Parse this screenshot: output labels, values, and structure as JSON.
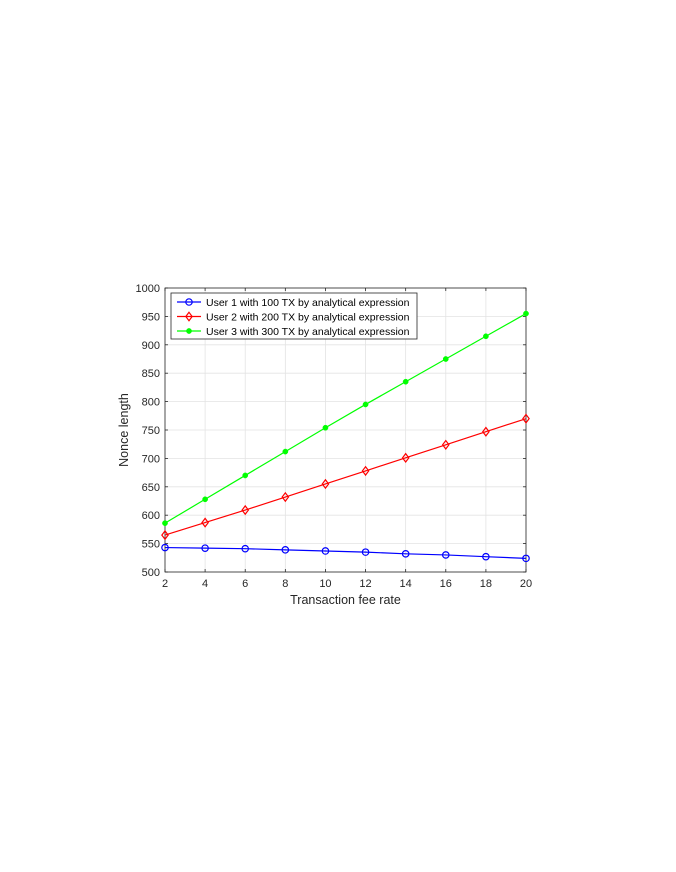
{
  "chart_data": {
    "type": "line",
    "xlabel": "Transaction fee rate",
    "ylabel": "Nonce length",
    "xlim": [
      2,
      20
    ],
    "ylim": [
      500,
      1000
    ],
    "xticks": [
      2,
      4,
      6,
      8,
      10,
      12,
      14,
      16,
      18,
      20
    ],
    "yticks": [
      500,
      550,
      600,
      650,
      700,
      750,
      800,
      850,
      900,
      950,
      1000
    ],
    "x": [
      2,
      4,
      6,
      8,
      10,
      12,
      14,
      16,
      18,
      20
    ],
    "grid": true,
    "legend_position": "top-left",
    "series": [
      {
        "name": "User 1 with 100 TX by analytical expression",
        "color": "#0000ff",
        "marker": "circle",
        "values": [
          543,
          542,
          541,
          539,
          537,
          535,
          532,
          530,
          527,
          524
        ]
      },
      {
        "name": "User 2 with 200 TX by analytical expression",
        "color": "#ff0000",
        "marker": "diamond",
        "values": [
          565,
          587,
          609,
          632,
          655,
          678,
          701,
          724,
          747,
          770
        ]
      },
      {
        "name": "User 3 with 300 TX by analytical expression",
        "color": "#00ff00",
        "marker": "dot",
        "values": [
          586,
          628,
          670,
          712,
          754,
          795,
          835,
          875,
          915,
          955
        ]
      }
    ]
  }
}
